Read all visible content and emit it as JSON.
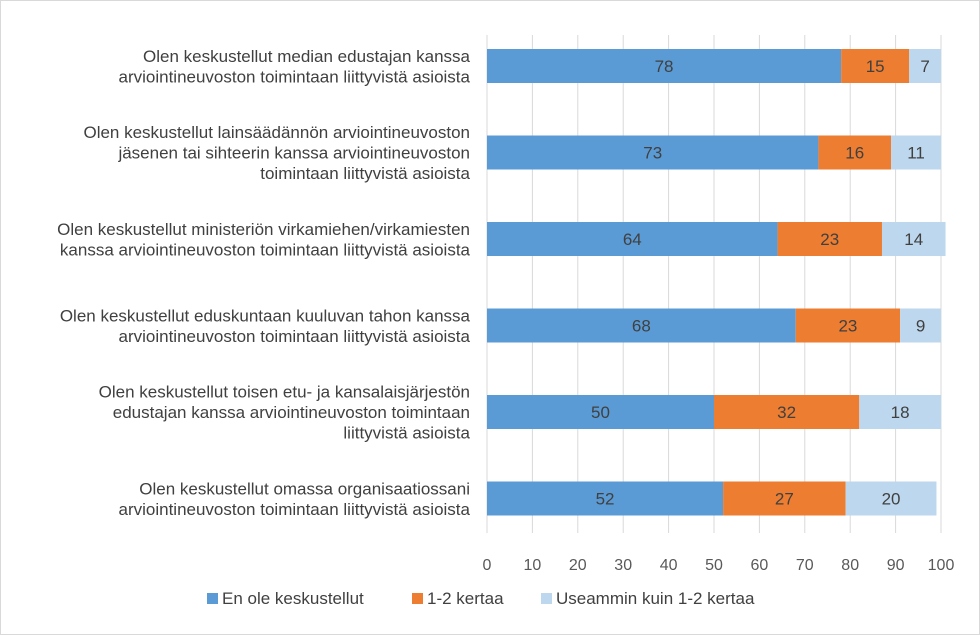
{
  "chart_data": {
    "type": "bar",
    "orientation": "horizontal",
    "stacked": true,
    "categories": [
      [
        "Olen keskustellut median edustajan kanssa",
        "arviointineuvoston toimintaan liittyvistä asioista"
      ],
      [
        "Olen keskustellut lainsäädännön arviointineuvoston",
        "jäsenen tai sihteerin kanssa arviointineuvoston",
        "toimintaan liittyvistä asioista"
      ],
      [
        "Olen keskustellut ministeriön virkamiehen/virkamiesten",
        "kanssa arviointineuvoston toimintaan liittyvistä asioista"
      ],
      [
        "Olen keskustellut eduskuntaan kuuluvan tahon kanssa",
        "arviointineuvoston toimintaan liittyvistä asioista"
      ],
      [
        "Olen keskustellut toisen etu- ja kansalaisjärjestön",
        "edustajan kanssa arviointineuvoston toimintaan",
        "liittyvistä asioista"
      ],
      [
        "Olen keskustellut omassa organisaatiossani",
        "arviointineuvoston toimintaan liittyvistä asioista"
      ]
    ],
    "series": [
      {
        "name": "En ole keskustellut",
        "color": "#5b9bd5",
        "values": [
          78,
          73,
          64,
          68,
          50,
          52
        ]
      },
      {
        "name": "1-2 kertaa",
        "color": "#ed7d31",
        "values": [
          15,
          16,
          23,
          23,
          32,
          27
        ]
      },
      {
        "name": "Useammin kuin 1-2 kertaa",
        "color": "#bdd7ee",
        "values": [
          7,
          11,
          14,
          9,
          18,
          20
        ]
      }
    ],
    "xlim": [
      0,
      100
    ],
    "xticks": [
      0,
      10,
      20,
      30,
      40,
      50,
      60,
      70,
      80,
      90,
      100
    ],
    "grid": true,
    "legend_position": "bottom"
  }
}
